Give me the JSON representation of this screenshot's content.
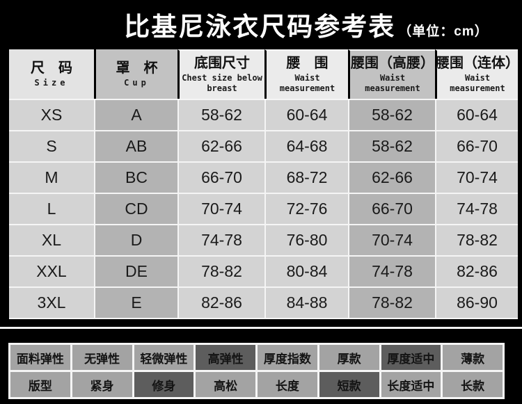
{
  "title": {
    "text": "比基尼泳衣尺码参考表",
    "unit": "（单位：cm）"
  },
  "size_table": {
    "headers": [
      {
        "zh": "尺　码",
        "en": "Size"
      },
      {
        "zh": "罩　杯",
        "en": "Cup"
      },
      {
        "zh": "底围尺寸",
        "en": "Chest size below breast"
      },
      {
        "zh": "腰　围",
        "en": "Waist measurement"
      },
      {
        "zh": "腰围（高腰）",
        "en": "Waist measurement"
      },
      {
        "zh": "腰围（连体）",
        "en": "Waist measurement"
      }
    ],
    "rows": [
      [
        "XS",
        "A",
        "58-62",
        "60-64",
        "58-62",
        "60-64"
      ],
      [
        "S",
        "AB",
        "62-66",
        "64-68",
        "58-62",
        "66-70"
      ],
      [
        "M",
        "BC",
        "66-70",
        "68-72",
        "62-66",
        "70-74"
      ],
      [
        "L",
        "CD",
        "70-74",
        "72-76",
        "66-70",
        "74-78"
      ],
      [
        "XL",
        "D",
        "74-78",
        "76-80",
        "70-74",
        "78-82"
      ],
      [
        "XXL",
        "DE",
        "78-82",
        "80-84",
        "74-78",
        "82-86"
      ],
      [
        "3XL",
        "E",
        "82-86",
        "84-88",
        "78-82",
        "86-90"
      ]
    ]
  },
  "attribute_table": {
    "rows": [
      [
        {
          "label": "面料弹性",
          "selected": false
        },
        {
          "label": "无弹性",
          "selected": false
        },
        {
          "label": "轻微弹性",
          "selected": false
        },
        {
          "label": "高弹性",
          "selected": true
        },
        {
          "label": "厚度指数",
          "selected": false
        },
        {
          "label": "厚款",
          "selected": false
        },
        {
          "label": "厚度适中",
          "selected": true
        },
        {
          "label": "薄款",
          "selected": false
        }
      ],
      [
        {
          "label": "版型",
          "selected": false
        },
        {
          "label": "紧身",
          "selected": false
        },
        {
          "label": "修身",
          "selected": true
        },
        {
          "label": "高松",
          "selected": false
        },
        {
          "label": "长度",
          "selected": false
        },
        {
          "label": "短款",
          "selected": true
        },
        {
          "label": "长度适中",
          "selected": false
        },
        {
          "label": "长款",
          "selected": false
        }
      ]
    ]
  },
  "colors": {
    "background": "#000000",
    "title_text": "#ffffff",
    "header_light": "#ebebeb",
    "header_size": "#e3e3e3",
    "header_dark": "#c2c2c2",
    "cell_light": "#d3d3d3",
    "cell_dark": "#b3b3b3",
    "separator": "#f5f5f5",
    "attr_cell": "#a3a3a3",
    "attr_selected": "#5d5d5d",
    "cell_text": "#1a1a1a"
  }
}
